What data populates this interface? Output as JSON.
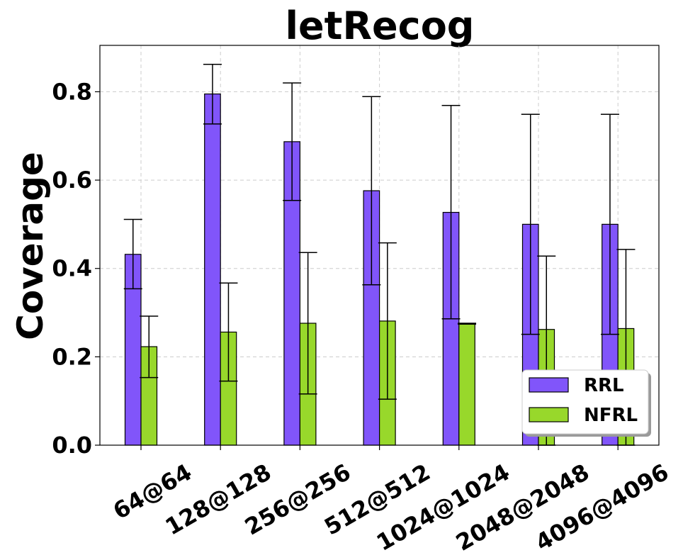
{
  "chart_data": {
    "type": "bar",
    "title": "letRecog",
    "xlabel": "",
    "ylabel": "Coverage",
    "ylim": [
      0,
      0.905
    ],
    "yticks": [
      "0.0",
      "0.2",
      "0.4",
      "0.6",
      "0.8"
    ],
    "grid": true,
    "legend_position": "lower-right",
    "categories": [
      "64@64",
      "128@128",
      "256@256",
      "512@512",
      "1024@1024",
      "2048@2048",
      "4096@4096"
    ],
    "series": [
      {
        "name": "RRL",
        "color": "#8155fa",
        "values": [
          0.432,
          0.795,
          0.687,
          0.576,
          0.527,
          0.5,
          0.5
        ],
        "err_low": [
          0.354,
          0.727,
          0.554,
          0.363,
          0.286,
          0.251,
          0.251
        ],
        "err_high": [
          0.511,
          0.862,
          0.82,
          0.789,
          0.769,
          0.749,
          0.749
        ]
      },
      {
        "name": "NFRL",
        "color": "#98d82b",
        "values": [
          0.223,
          0.256,
          0.276,
          0.281,
          0.275,
          0.262,
          0.264
        ],
        "err_low": [
          0.153,
          0.145,
          0.116,
          0.104,
          0.274,
          0.0,
          0.0
        ],
        "err_high": [
          0.292,
          0.367,
          0.436,
          0.458,
          0.276,
          0.428,
          0.443
        ]
      }
    ]
  }
}
